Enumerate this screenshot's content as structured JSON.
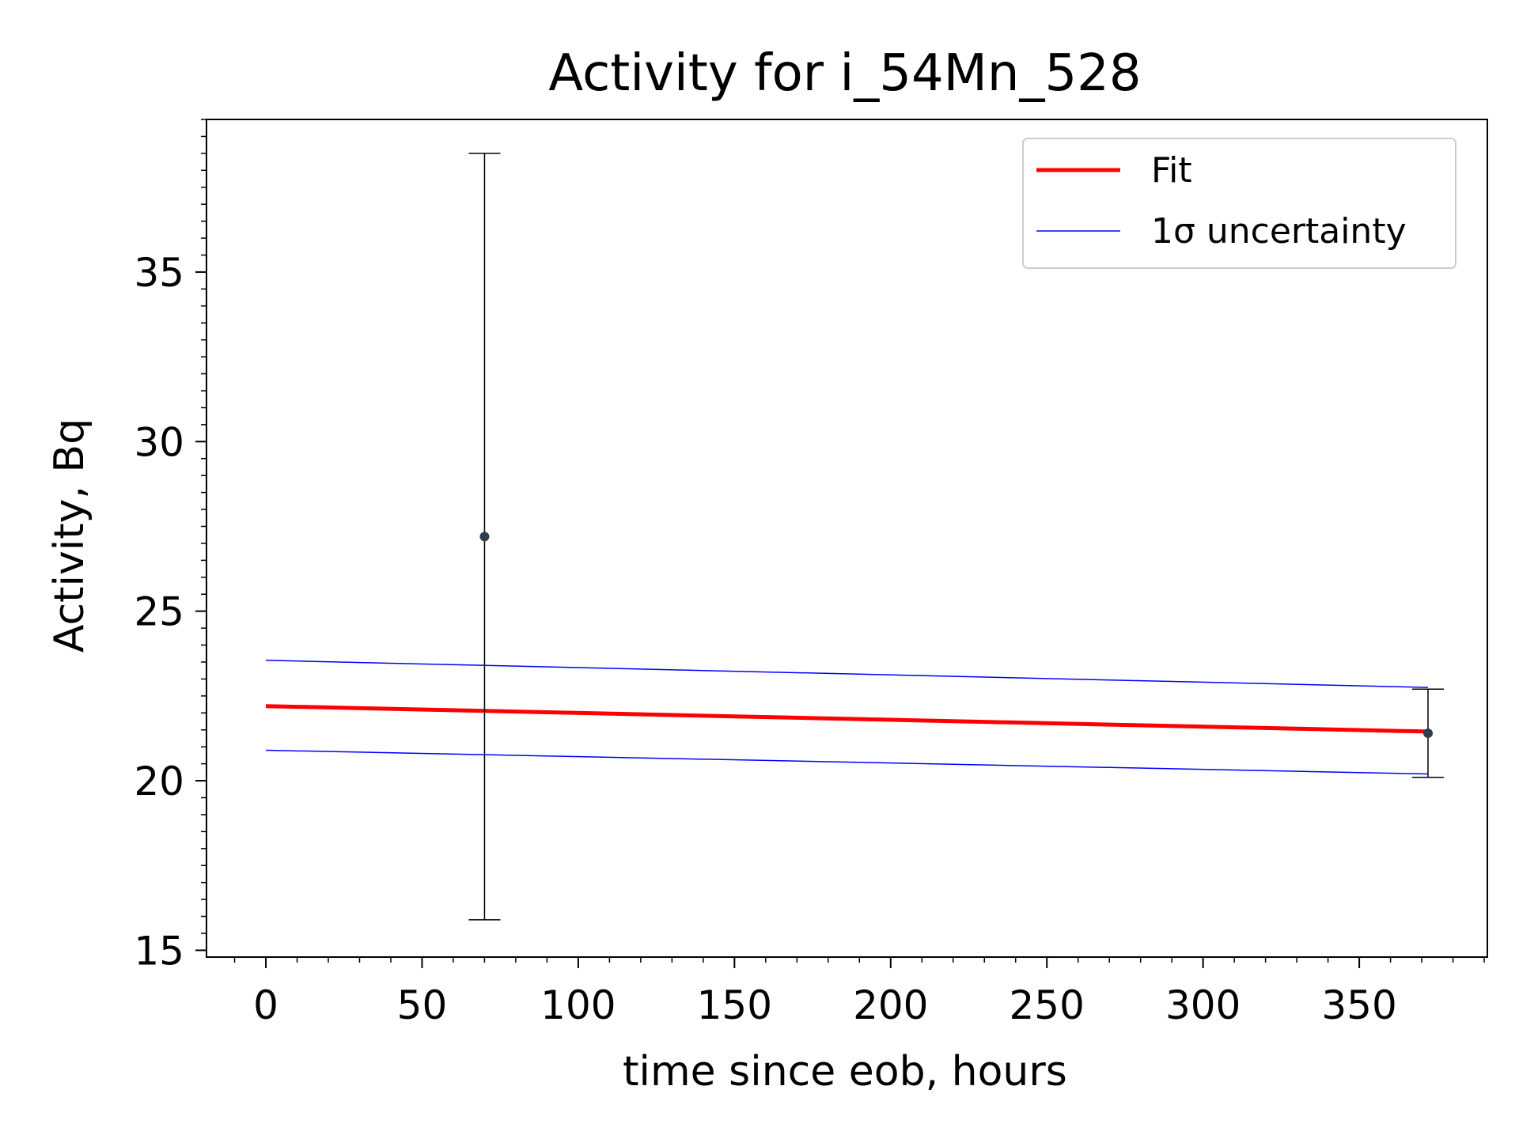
{
  "chart_data": {
    "type": "scatter",
    "title": "Activity for i_54Mn_528",
    "xlabel": "time since eob, hours",
    "ylabel": "Activity, Bq",
    "xlim": [
      -19,
      391
    ],
    "ylim": [
      14.8,
      39.5
    ],
    "xticks": [
      0,
      50,
      100,
      150,
      200,
      250,
      300,
      350
    ],
    "xtick_labels": [
      "0",
      "50",
      "100",
      "150",
      "200",
      "250",
      "300",
      "350"
    ],
    "yticks": [
      15,
      20,
      25,
      30,
      35
    ],
    "ytick_labels": [
      "15",
      "20",
      "25",
      "30",
      35
    ],
    "grid": false,
    "legend_position": "top-right",
    "legend": [
      {
        "label": "Fit",
        "color": "#ff0000",
        "style": "thick-line"
      },
      {
        "label": "1σ uncertainty",
        "color": "#0000ff",
        "style": "thin-line"
      }
    ],
    "measurements": [
      {
        "x": 70,
        "y": 27.2,
        "yerr_low": 15.9,
        "yerr_high": 38.5
      },
      {
        "x": 372,
        "y": 21.4,
        "yerr_low": 20.1,
        "yerr_high": 22.7
      }
    ],
    "series": [
      {
        "name": "Fit",
        "color": "#ff0000",
        "x": [
          0,
          372
        ],
        "y": [
          22.2,
          21.45
        ]
      },
      {
        "name": "1σ uncertainty",
        "color": "#0000ff",
        "x": [
          0,
          372
        ],
        "y": [
          23.55,
          22.75
        ]
      },
      {
        "name": "1σ uncertainty",
        "color": "#0000ff",
        "x": [
          0,
          372
        ],
        "y": [
          20.9,
          20.2
        ]
      }
    ],
    "point_color": "#2f3e4e",
    "errorbar_color": "#000000"
  }
}
